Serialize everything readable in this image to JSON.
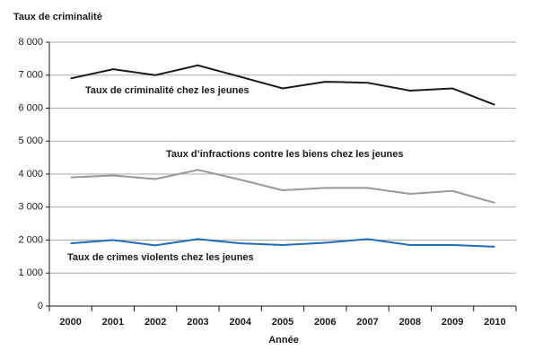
{
  "chart_data": {
    "type": "line",
    "y_label": "Taux de criminalité",
    "x_label": "Année",
    "categories": [
      "2000",
      "2001",
      "2002",
      "2003",
      "2004",
      "2005",
      "2006",
      "2007",
      "2008",
      "2009",
      "2010"
    ],
    "series": [
      {
        "name": "Taux de criminalité chez les jeunes",
        "color": "#1a1a1a",
        "values": [
          6900,
          7180,
          7000,
          7300,
          6950,
          6600,
          6800,
          6770,
          6530,
          6600,
          6100
        ]
      },
      {
        "name": "Taux d’infractions contre les biens chez les jeunes",
        "color": "#999999",
        "values": [
          3900,
          3960,
          3850,
          4130,
          3830,
          3510,
          3580,
          3580,
          3400,
          3490,
          3130
        ]
      },
      {
        "name": "Taux de crimes violents chez les jeunes",
        "color": "#1f6db5",
        "values": [
          1900,
          2000,
          1840,
          2030,
          1900,
          1850,
          1920,
          2030,
          1850,
          1850,
          1800
        ]
      }
    ],
    "ylim": [
      0,
      8000
    ],
    "yticks": [
      0,
      {
        "value": 1000,
        "label": "1 000"
      },
      {
        "value": 2000,
        "label": "2 000"
      },
      {
        "value": 3000,
        "label": "3 000"
      },
      {
        "value": 4000,
        "label": "4 000"
      },
      {
        "value": 5000,
        "label": "5 000"
      },
      {
        "value": 6000,
        "label": "6 000"
      },
      {
        "value": 7000,
        "label": "7 000"
      },
      {
        "value": 8000,
        "label": "8 000"
      }
    ],
    "grid": true
  }
}
